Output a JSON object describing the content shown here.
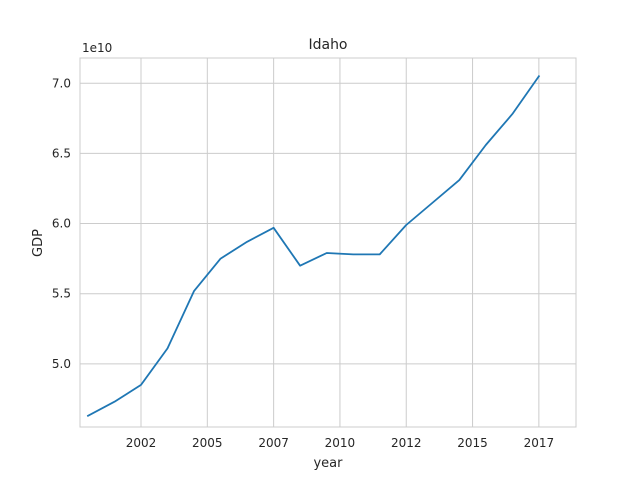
{
  "chart_data": {
    "type": "line",
    "title": "Idaho",
    "xlabel": "year",
    "ylabel": "GDP",
    "y_offset_label": "1e10",
    "x_ticks": [
      {
        "label": "2002",
        "value": 2002
      },
      {
        "label": "2005",
        "value": 2004.5
      },
      {
        "label": "2007",
        "value": 2007
      },
      {
        "label": "2010",
        "value": 2009.5
      },
      {
        "label": "2012",
        "value": 2012
      },
      {
        "label": "2015",
        "value": 2014.5
      },
      {
        "label": "2017",
        "value": 2017
      }
    ],
    "y_ticks": [
      "5.0",
      "5.5",
      "6.0",
      "6.5",
      "7.0"
    ],
    "xlim": [
      1999.7,
      2018.4
    ],
    "ylim": [
      4.55,
      7.18
    ],
    "grid": true,
    "series": [
      {
        "color": "#1f77b4",
        "x": [
          2000,
          2001,
          2002,
          2003,
          2004,
          2005,
          2006,
          2007,
          2008,
          2009,
          2010,
          2011,
          2012,
          2013,
          2014,
          2015,
          2016,
          2017
        ],
        "y": [
          4.63,
          4.73,
          4.85,
          5.11,
          5.52,
          5.75,
          5.87,
          5.97,
          5.7,
          5.79,
          5.78,
          5.78,
          5.99,
          6.15,
          6.31,
          6.56,
          6.78,
          7.05
        ]
      }
    ]
  }
}
